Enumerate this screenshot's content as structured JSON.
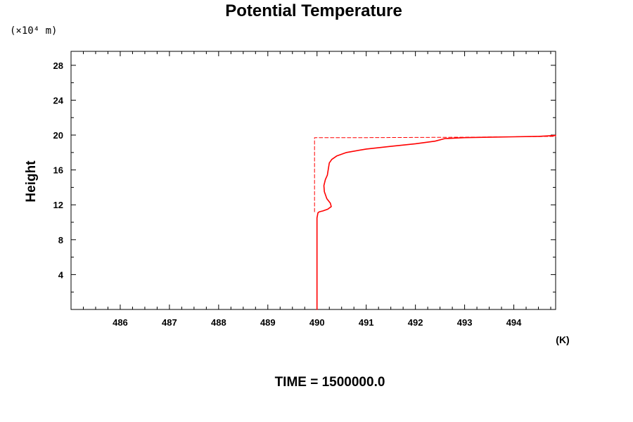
{
  "chart_data": {
    "type": "line",
    "title": "Potential Temperature",
    "ylabel": "Height",
    "yunit": "(×10⁴ m)",
    "xunit": "(K)",
    "caption": "TIME = 1500000.0",
    "xlim": [
      485.0,
      494.85
    ],
    "ylim": [
      0.0,
      29.6
    ],
    "xticks": [
      486,
      487,
      488,
      489,
      490,
      491,
      492,
      493,
      494
    ],
    "xtick_labels": [
      "486",
      "487",
      "488",
      "489",
      "490",
      "491",
      "492",
      "493",
      "494"
    ],
    "yticks": [
      4,
      8,
      12,
      16,
      20,
      24,
      28
    ],
    "ytick_labels": [
      "4",
      "8",
      "12",
      "16",
      "20",
      "24",
      "28"
    ],
    "grid": false,
    "series": [
      {
        "style": "solid",
        "color": "#ff0000",
        "x": [
          490.0,
          490.0,
          490.0,
          490.02,
          490.05,
          490.12,
          490.22,
          490.29,
          490.27,
          490.2,
          490.15,
          490.14,
          490.17,
          490.21,
          490.23,
          490.25,
          490.3,
          490.4,
          490.6,
          491.0,
          491.5,
          492.0,
          492.4,
          492.6,
          493.0,
          493.5,
          494.0,
          494.5,
          494.85
        ],
        "y": [
          0.0,
          5.0,
          10.5,
          11.1,
          11.2,
          11.3,
          11.5,
          11.8,
          12.2,
          12.7,
          13.5,
          14.2,
          14.9,
          15.4,
          16.1,
          16.8,
          17.2,
          17.6,
          18.0,
          18.4,
          18.7,
          19.0,
          19.3,
          19.6,
          19.7,
          19.75,
          19.8,
          19.85,
          19.95
        ]
      },
      {
        "style": "dashed",
        "color": "#ff0000",
        "x": [
          489.95,
          489.95,
          491.0,
          493.0,
          494.85
        ],
        "y": [
          11.2,
          19.7,
          19.7,
          19.75,
          19.85
        ]
      }
    ]
  }
}
